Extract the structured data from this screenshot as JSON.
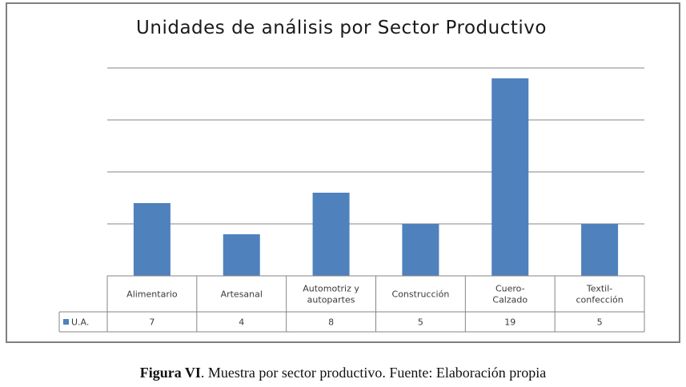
{
  "chart_data": {
    "type": "bar",
    "title": "Unidades de análisis por Sector Productivo",
    "categories": [
      [
        "Alimentario"
      ],
      [
        "Artesanal"
      ],
      [
        "Automotriz  y",
        "autopartes"
      ],
      [
        "Construcción"
      ],
      [
        "Cuero-",
        "Calzado"
      ],
      [
        "Textil-",
        "confección"
      ]
    ],
    "series": [
      {
        "name": "U.A.",
        "values": [
          7,
          4,
          8,
          5,
          19,
          5
        ]
      }
    ],
    "data_labels": [
      "7",
      "4",
      "8",
      "5",
      "19",
      "5"
    ],
    "ylim": [
      0,
      20
    ],
    "grid": true,
    "legend": "left",
    "data_table": true,
    "colors": {
      "bar": "#4f81bd",
      "grid": "#868686",
      "table_border": "#868686"
    }
  },
  "caption": {
    "label": "Figura VI",
    "text": ".  Muestra por sector productivo. Fuente: Elaboración propia"
  }
}
